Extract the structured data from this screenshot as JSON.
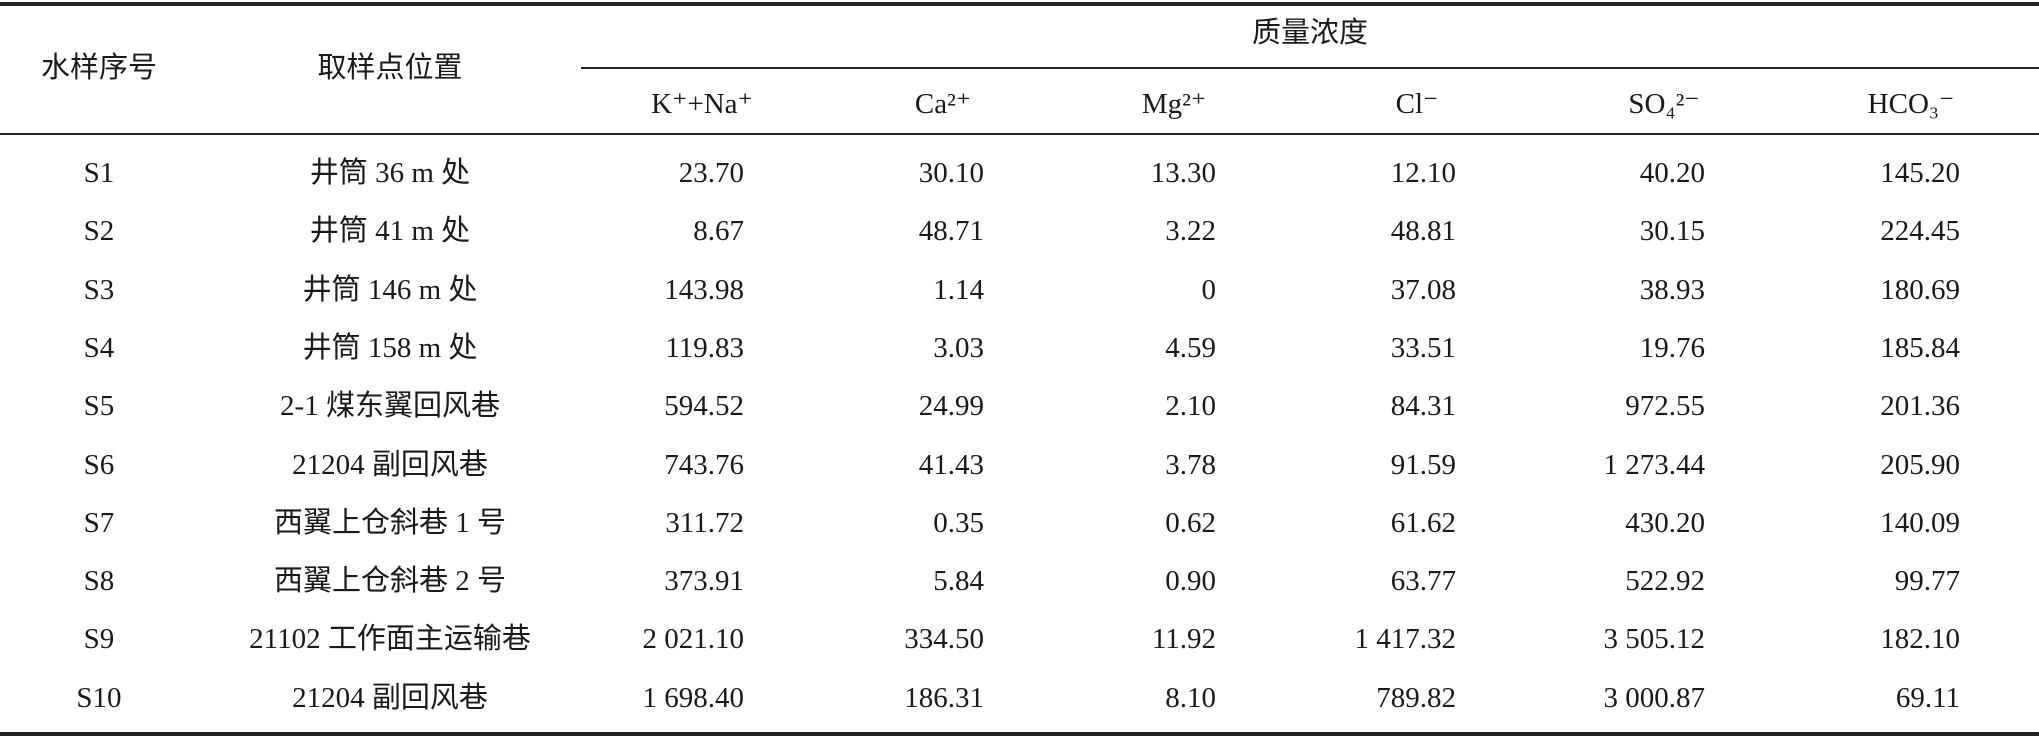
{
  "table": {
    "headers": {
      "sample_no": "水样序号",
      "location": "取样点位置",
      "group": "质量浓度",
      "ions": [
        "K⁺+Na⁺",
        "Ca²⁺",
        "Mg²⁺",
        "Cl⁻",
        "SO₄²⁻",
        "HCO₃⁻"
      ]
    },
    "rows": [
      [
        "S1",
        "井筒 36 m 处",
        "23.70",
        "30.10",
        "13.30",
        "12.10",
        "40.20",
        "145.20"
      ],
      [
        "S2",
        "井筒 41 m 处",
        "8.67",
        "48.71",
        "3.22",
        "48.81",
        "30.15",
        "224.45"
      ],
      [
        "S3",
        "井筒 146 m 处",
        "143.98",
        "1.14",
        "0",
        "37.08",
        "38.93",
        "180.69"
      ],
      [
        "S4",
        "井筒 158 m 处",
        "119.83",
        "3.03",
        "4.59",
        "33.51",
        "19.76",
        "185.84"
      ],
      [
        "S5",
        "2-1 煤东翼回风巷",
        "594.52",
        "24.99",
        "2.10",
        "84.31",
        "972.55",
        "201.36"
      ],
      [
        "S6",
        "21204 副回风巷",
        "743.76",
        "41.43",
        "3.78",
        "91.59",
        "1 273.44",
        "205.90"
      ],
      [
        "S7",
        "西翼上仓斜巷 1 号",
        "311.72",
        "0.35",
        "0.62",
        "61.62",
        "430.20",
        "140.09"
      ],
      [
        "S8",
        "西翼上仓斜巷 2 号",
        "373.91",
        "5.84",
        "0.90",
        "63.77",
        "522.92",
        "99.77"
      ],
      [
        "S9",
        "21102 工作面主运输巷",
        "2 021.10",
        "334.50",
        "11.92",
        "1 417.32",
        "3 505.12",
        "182.10"
      ],
      [
        "S10",
        "21204 副回风巷",
        "1 698.40",
        "186.31",
        "8.10",
        "789.82",
        "3 000.87",
        "69.11"
      ]
    ]
  }
}
